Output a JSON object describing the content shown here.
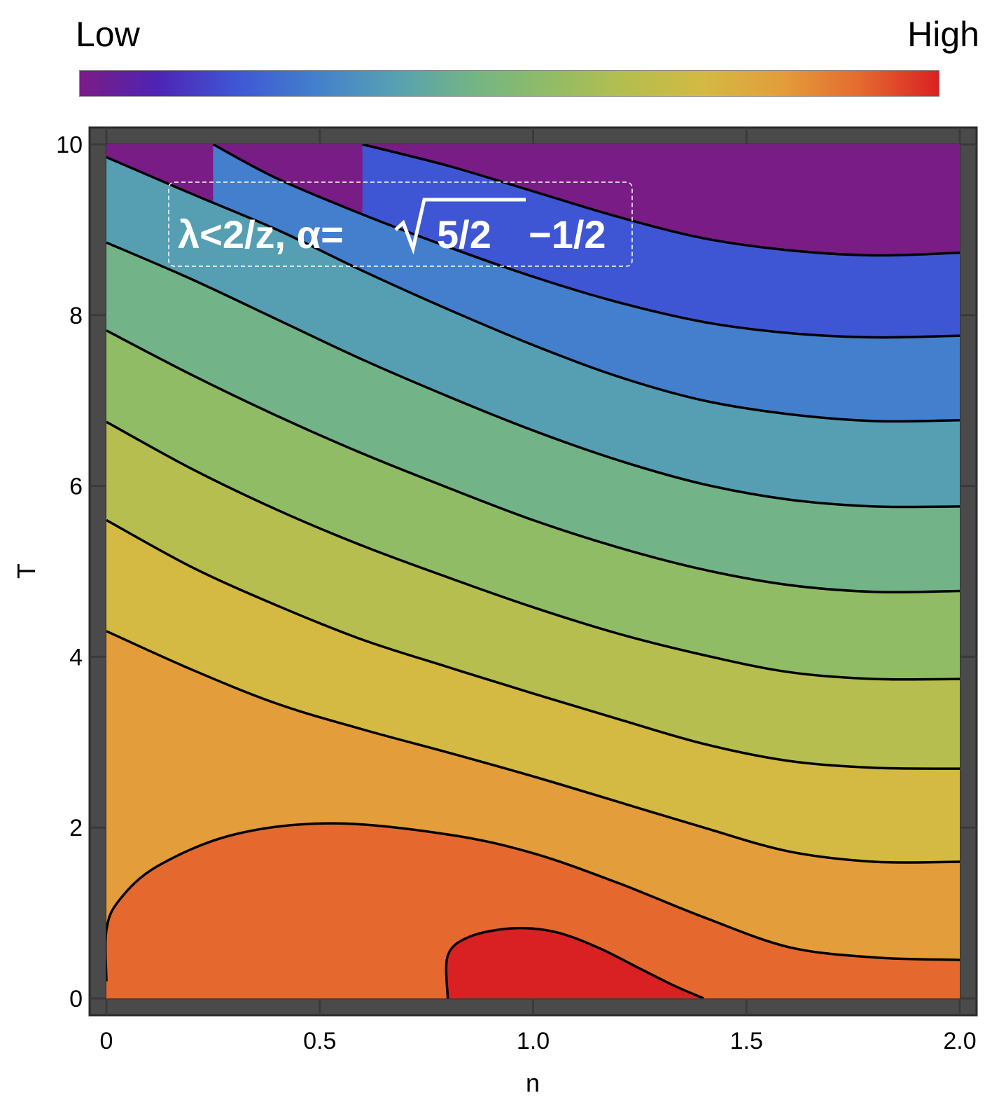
{
  "legend": {
    "low_label": "Low",
    "high_label": "High",
    "colors": [
      "#7a1c85",
      "#4e24b5",
      "#3f56d4",
      "#437fcc",
      "#569fb3",
      "#72b487",
      "#90bc66",
      "#b5be4e",
      "#d4b943",
      "#e39d3a",
      "#e5692f",
      "#d92123"
    ]
  },
  "chart_data": {
    "type": "contour",
    "title": "",
    "annotation": "λ<2/z, α=√5/2−1/2",
    "annotation_parts": {
      "lhs": "λ<2/z, α=",
      "radicand": "5/2",
      "rhs": "−1/2"
    },
    "xlabel": "n",
    "ylabel": "T",
    "xlim": [
      0,
      2
    ],
    "ylim": [
      0,
      10
    ],
    "xticks": [
      0,
      0.5,
      1.0,
      1.5,
      2.0
    ],
    "xtick_labels": [
      "0",
      "0.5",
      "1.0",
      "1.5",
      "2.0"
    ],
    "yticks": [
      0,
      2,
      4,
      6,
      8,
      10
    ],
    "ytick_labels": [
      "0",
      "2",
      "4",
      "6",
      "8",
      "10"
    ],
    "grid": true,
    "band_colors_low_to_high": [
      "#7a1c85",
      "#3f56d4",
      "#437fcc",
      "#569fb3",
      "#72b487",
      "#90bc66",
      "#b5be4e",
      "#d4b943",
      "#e39d3a",
      "#e5692f",
      "#d92123"
    ],
    "contours": [
      {
        "level": 10,
        "points": [
          [
            0.6,
            10.0
          ],
          [
            0.8,
            9.75
          ],
          [
            1.0,
            9.45
          ],
          [
            1.2,
            9.15
          ],
          [
            1.4,
            8.9
          ],
          [
            1.6,
            8.76
          ],
          [
            1.8,
            8.7
          ],
          [
            2.0,
            8.73
          ]
        ]
      },
      {
        "level": 9,
        "points": [
          [
            0.25,
            10.0
          ],
          [
            0.4,
            9.6
          ],
          [
            0.6,
            9.18
          ],
          [
            0.8,
            8.8
          ],
          [
            1.0,
            8.45
          ],
          [
            1.2,
            8.15
          ],
          [
            1.4,
            7.92
          ],
          [
            1.6,
            7.79
          ],
          [
            1.8,
            7.74
          ],
          [
            2.0,
            7.76
          ]
        ]
      },
      {
        "level": 8,
        "points": [
          [
            0.0,
            9.85
          ],
          [
            0.2,
            9.42
          ],
          [
            0.4,
            9.0
          ],
          [
            0.6,
            8.52
          ],
          [
            0.8,
            8.07
          ],
          [
            1.0,
            7.65
          ],
          [
            1.2,
            7.28
          ],
          [
            1.4,
            7.0
          ],
          [
            1.6,
            6.84
          ],
          [
            1.8,
            6.76
          ],
          [
            2.0,
            6.77
          ]
        ]
      },
      {
        "level": 7,
        "points": [
          [
            0.0,
            8.85
          ],
          [
            0.2,
            8.42
          ],
          [
            0.4,
            7.95
          ],
          [
            0.6,
            7.48
          ],
          [
            0.8,
            7.05
          ],
          [
            1.0,
            6.65
          ],
          [
            1.2,
            6.3
          ],
          [
            1.4,
            6.02
          ],
          [
            1.6,
            5.84
          ],
          [
            1.8,
            5.76
          ],
          [
            2.0,
            5.76
          ]
        ]
      },
      {
        "level": 6,
        "points": [
          [
            0.0,
            7.82
          ],
          [
            0.2,
            7.3
          ],
          [
            0.4,
            6.82
          ],
          [
            0.6,
            6.38
          ],
          [
            0.8,
            5.98
          ],
          [
            1.0,
            5.6
          ],
          [
            1.2,
            5.28
          ],
          [
            1.4,
            5.02
          ],
          [
            1.6,
            4.84
          ],
          [
            1.8,
            4.76
          ],
          [
            2.0,
            4.77
          ]
        ]
      },
      {
        "level": 5,
        "points": [
          [
            0.0,
            6.75
          ],
          [
            0.2,
            6.2
          ],
          [
            0.4,
            5.72
          ],
          [
            0.6,
            5.3
          ],
          [
            0.8,
            4.93
          ],
          [
            1.0,
            4.58
          ],
          [
            1.2,
            4.27
          ],
          [
            1.4,
            4.02
          ],
          [
            1.6,
            3.82
          ],
          [
            1.8,
            3.74
          ],
          [
            2.0,
            3.74
          ]
        ]
      },
      {
        "level": 4,
        "points": [
          [
            0.0,
            5.6
          ],
          [
            0.2,
            5.05
          ],
          [
            0.4,
            4.6
          ],
          [
            0.6,
            4.2
          ],
          [
            0.8,
            3.88
          ],
          [
            1.0,
            3.57
          ],
          [
            1.2,
            3.27
          ],
          [
            1.4,
            2.98
          ],
          [
            1.6,
            2.78
          ],
          [
            1.8,
            2.7
          ],
          [
            2.0,
            2.69
          ]
        ]
      },
      {
        "level": 3,
        "points": [
          [
            0.0,
            4.3
          ],
          [
            0.2,
            3.85
          ],
          [
            0.4,
            3.45
          ],
          [
            0.6,
            3.15
          ],
          [
            0.8,
            2.88
          ],
          [
            1.0,
            2.6
          ],
          [
            1.2,
            2.3
          ],
          [
            1.4,
            2.0
          ],
          [
            1.6,
            1.72
          ],
          [
            1.8,
            1.6
          ],
          [
            2.0,
            1.6
          ]
        ]
      },
      {
        "level": 2,
        "points": [
          [
            0.0,
            0.2
          ],
          [
            0.0,
            0.8
          ],
          [
            0.03,
            1.15
          ],
          [
            0.12,
            1.55
          ],
          [
            0.3,
            1.92
          ],
          [
            0.53,
            2.05
          ],
          [
            0.8,
            1.92
          ],
          [
            1.0,
            1.7
          ],
          [
            1.2,
            1.35
          ],
          [
            1.4,
            0.95
          ],
          [
            1.6,
            0.6
          ],
          [
            1.8,
            0.48
          ],
          [
            2.0,
            0.45
          ]
        ]
      },
      {
        "level": 1,
        "points": [
          [
            0.8,
            0.0
          ],
          [
            0.8,
            0.5
          ],
          [
            0.85,
            0.72
          ],
          [
            0.95,
            0.82
          ],
          [
            1.05,
            0.78
          ],
          [
            1.15,
            0.6
          ],
          [
            1.25,
            0.35
          ],
          [
            1.33,
            0.15
          ],
          [
            1.4,
            0.0
          ]
        ]
      }
    ]
  }
}
